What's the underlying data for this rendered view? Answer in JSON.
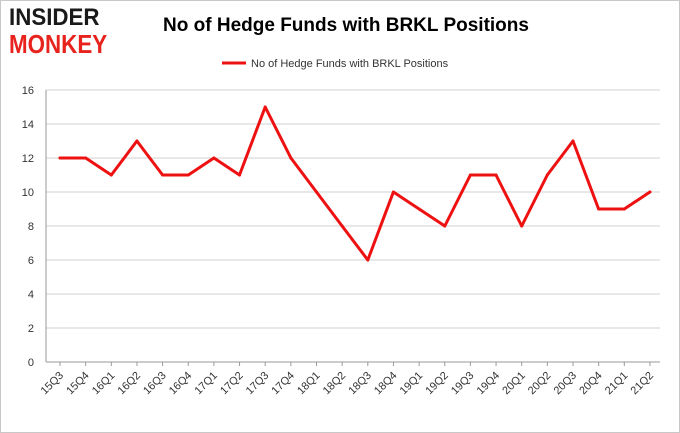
{
  "logo": {
    "top_text": "INSIDER",
    "bottom_text": "MONKEY"
  },
  "chart_data": {
    "type": "line",
    "title": "No of Hedge Funds with BRKL Positions",
    "xlabel": "",
    "ylabel": "",
    "categories": [
      "15Q3",
      "15Q4",
      "16Q1",
      "16Q2",
      "16Q3",
      "16Q4",
      "17Q1",
      "17Q2",
      "17Q3",
      "17Q4",
      "18Q1",
      "18Q2",
      "18Q3",
      "18Q4",
      "19Q1",
      "19Q2",
      "19Q3",
      "19Q4",
      "20Q1",
      "20Q2",
      "20Q3",
      "20Q4",
      "21Q1",
      "21Q2"
    ],
    "series": [
      {
        "name": "No of Hedge Funds with BRKL Positions",
        "color": "#ee1111",
        "values": [
          12,
          12,
          11,
          13,
          11,
          11,
          12,
          11,
          15,
          12,
          10,
          8,
          6,
          10,
          9,
          8,
          11,
          11,
          8,
          11,
          13,
          9,
          9,
          10
        ]
      }
    ],
    "ylim": [
      0,
      16
    ],
    "yticks": [
      0,
      2,
      4,
      6,
      8,
      10,
      12,
      14,
      16
    ],
    "grid": true,
    "legend_position": "top-center"
  }
}
